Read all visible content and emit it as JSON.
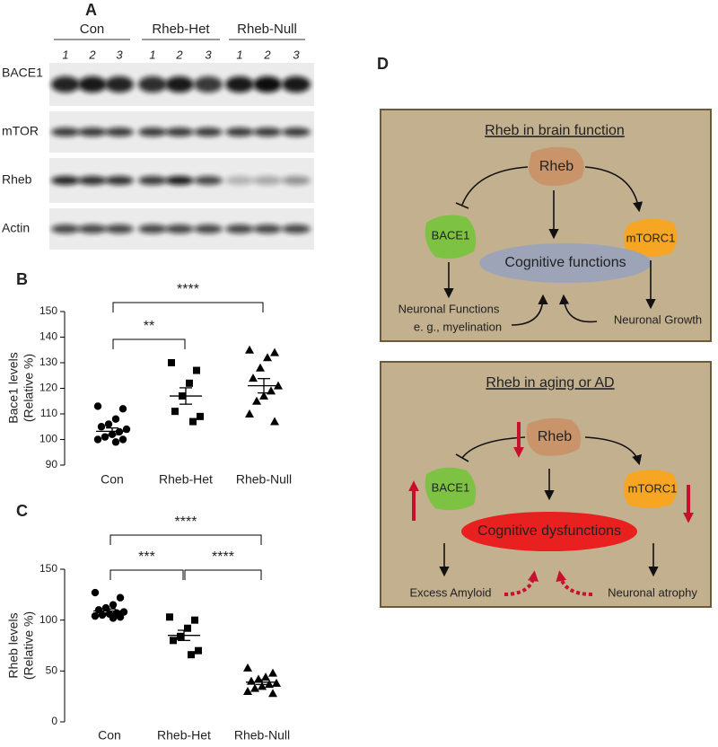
{
  "panel_labels": [
    "A",
    "B",
    "C",
    "D"
  ],
  "blot": {
    "groups": [
      "Con",
      "Rheb-Het",
      "Rheb-Null"
    ],
    "lanes": [
      "1",
      "2",
      "3",
      "1",
      "2",
      "3",
      "1",
      "2",
      "3"
    ],
    "rows": [
      "BACE1",
      "mTOR",
      "Rheb",
      "Actin"
    ]
  },
  "chart_data": [
    {
      "type": "strip",
      "categories": [
        "Con",
        "Rheb-Het",
        "Rheb-Null"
      ],
      "markers": [
        "circle",
        "square",
        "triangle"
      ],
      "color": "#000000",
      "values": [
        [
          113,
          112,
          108,
          106,
          105,
          104,
          103,
          102,
          101,
          100,
          100,
          99
        ],
        [
          130,
          127,
          122,
          117,
          111,
          109,
          107
        ],
        [
          135,
          134,
          132,
          128,
          124,
          121,
          119,
          117,
          115,
          110,
          107
        ]
      ],
      "means": [
        103.2,
        117,
        121
      ],
      "sems": [
        1.3,
        3.2,
        2.8
      ],
      "ylabel": [
        "Bace1 levels",
        "(Relative %)"
      ],
      "ylim": [
        90,
        150
      ],
      "yticks": [
        90,
        100,
        110,
        120,
        130,
        140,
        150
      ],
      "brackets": [
        {
          "from": 0,
          "to": 1,
          "label": "**"
        },
        {
          "from": 0,
          "to": 2,
          "label": "****"
        }
      ]
    },
    {
      "type": "strip",
      "categories": [
        "Con",
        "Rheb-Het",
        "Rheb-Null"
      ],
      "markers": [
        "circle",
        "square",
        "triangle"
      ],
      "color": "#000000",
      "values": [
        [
          127,
          122,
          115,
          112,
          110,
          108,
          107,
          106,
          105,
          104,
          103,
          102
        ],
        [
          103,
          100,
          92,
          84,
          80,
          70,
          66
        ],
        [
          53,
          48,
          44,
          42,
          40,
          38,
          37,
          35,
          33,
          30,
          28
        ]
      ],
      "means": [
        109,
        85,
        39
      ],
      "sems": [
        2,
        5,
        2.3
      ],
      "ylabel": [
        "Rheb levels",
        "(Relative %)"
      ],
      "ylim": [
        0,
        150
      ],
      "yticks": [
        0,
        50,
        100,
        150
      ],
      "brackets": [
        {
          "from": 0,
          "to": 1,
          "label": "***"
        },
        {
          "from": 1,
          "to": 2,
          "label": "****"
        },
        {
          "from": 0,
          "to": 2,
          "label": "****"
        }
      ]
    }
  ],
  "diagram": {
    "top": {
      "title": "Rheb in brain function",
      "rheb": "Rheb",
      "bace1": "BACE1",
      "mtorc1": "mTORC1",
      "center": "Cognitive functions",
      "left_line1": "Neuronal Functions",
      "left_line2": "e. g., myelination",
      "right": "Neuronal Growth"
    },
    "bottom": {
      "title": "Rheb in aging or AD",
      "rheb": "Rheb",
      "bace1": "BACE1",
      "mtorc1": "mTORC1",
      "center": "Cognitive dysfunctions",
      "left": "Excess Amyloid",
      "right": "Neuronal atrophy"
    }
  }
}
